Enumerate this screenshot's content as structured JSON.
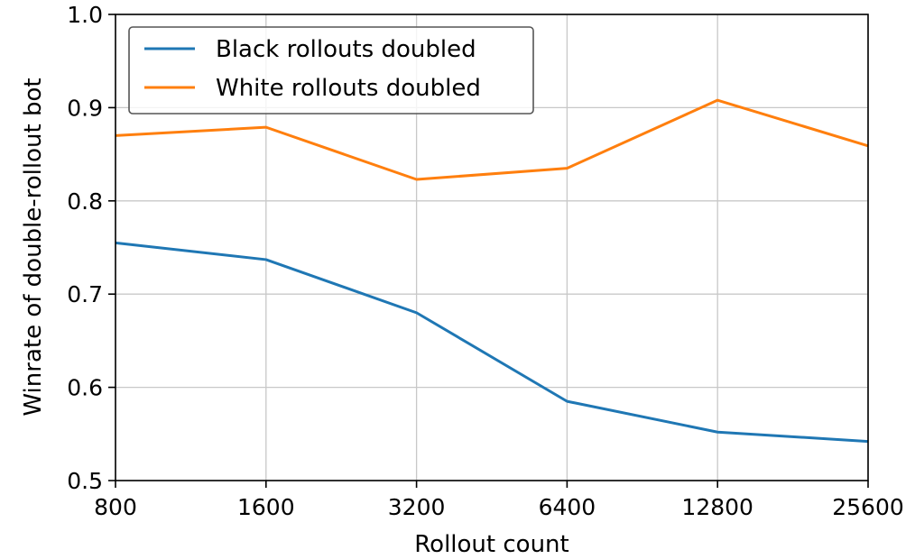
{
  "chart_data": {
    "type": "line",
    "x_scale": "log2",
    "categories": [
      "800",
      "1600",
      "3200",
      "6400",
      "12800",
      "25600"
    ],
    "x": [
      800,
      1600,
      3200,
      6400,
      12800,
      25600
    ],
    "xlabel": "Rollout count",
    "ylabel": "Winrate of double-rollout bot",
    "ylim": [
      0.5,
      1.0
    ],
    "yticks": [
      "0.5",
      "0.6",
      "0.7",
      "0.8",
      "0.9",
      "1.0"
    ],
    "ytick_values": [
      0.5,
      0.6,
      0.7,
      0.8,
      0.9,
      1.0
    ],
    "grid": true,
    "legend_position": "top-left",
    "series": [
      {
        "name": "Black rollouts doubled",
        "color": "#1f77b4",
        "values": [
          0.755,
          0.737,
          0.68,
          0.585,
          0.552,
          0.542
        ]
      },
      {
        "name": "White rollouts doubled",
        "color": "#ff7f0e",
        "values": [
          0.87,
          0.879,
          0.823,
          0.835,
          0.908,
          0.859
        ]
      }
    ]
  }
}
